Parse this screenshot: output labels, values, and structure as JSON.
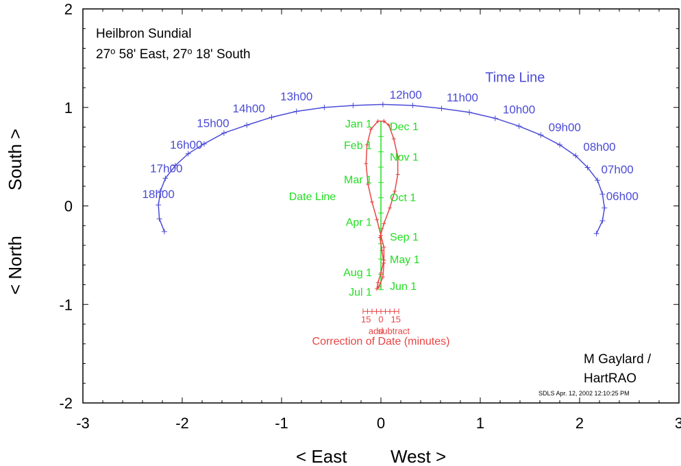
{
  "header": {
    "title": "Heilbron Sundial",
    "location_a": "27",
    "location_b": "o",
    "location_c": " 58' East, 27",
    "location_d": "o",
    "location_e": " 18' South"
  },
  "credits": {
    "author": "M Gaylard /",
    "org": "HartRAO",
    "stamp": "SDLS  Apr. 12, 2002  12:10:25 PM"
  },
  "colors": {
    "time_line": "#4a4ad6",
    "date_line": "#22dd22",
    "analemma": "#e84444",
    "axes": "#000000"
  },
  "chart_data": {
    "type": "line",
    "xlabel_left": "< East",
    "xlabel_right": "West >",
    "ylabel_left": "< North",
    "ylabel_right": "South >",
    "xlim": [
      -3,
      3
    ],
    "ylim": [
      -2,
      2
    ],
    "xticks": [
      "-3",
      "-2",
      "-1",
      "0",
      "1",
      "2",
      "3"
    ],
    "yticks": [
      "2",
      "1",
      "0",
      "-1",
      "-2"
    ],
    "grid": false,
    "series": [
      {
        "name": "Time Line",
        "points": [
          [
            -2.18,
            -0.26
          ],
          [
            -2.23,
            -0.13
          ],
          [
            -2.24,
            0.01
          ],
          [
            -2.22,
            0.15
          ],
          [
            -2.17,
            0.28
          ],
          [
            -2.07,
            0.41
          ],
          [
            -1.94,
            0.53
          ],
          [
            -1.78,
            0.63
          ],
          [
            -1.58,
            0.74
          ],
          [
            -1.35,
            0.82
          ],
          [
            -1.1,
            0.9
          ],
          [
            -0.85,
            0.96
          ],
          [
            -0.57,
            1.0
          ],
          [
            -0.28,
            1.02
          ],
          [
            0.02,
            1.03
          ],
          [
            0.32,
            1.02
          ],
          [
            0.61,
            0.99
          ],
          [
            0.89,
            0.95
          ],
          [
            1.15,
            0.89
          ],
          [
            1.39,
            0.81
          ],
          [
            1.61,
            0.72
          ],
          [
            1.8,
            0.62
          ],
          [
            1.96,
            0.51
          ],
          [
            2.08,
            0.39
          ],
          [
            2.18,
            0.26
          ],
          [
            2.23,
            0.12
          ],
          [
            2.25,
            -0.02
          ],
          [
            2.23,
            -0.15
          ],
          [
            2.17,
            -0.28
          ]
        ],
        "hour_labels": [
          {
            "text": "18h00",
            "x": -2.24,
            "y": 0.08
          },
          {
            "text": "17h00",
            "x": -2.16,
            "y": 0.34
          },
          {
            "text": "16h00",
            "x": -1.96,
            "y": 0.58
          },
          {
            "text": "15h00",
            "x": -1.69,
            "y": 0.8
          },
          {
            "text": "14h00",
            "x": -1.33,
            "y": 0.95
          },
          {
            "text": "13h00",
            "x": -0.85,
            "y": 1.07
          },
          {
            "text": "12h00",
            "x": 0.25,
            "y": 1.09
          },
          {
            "text": "11h00",
            "x": 0.82,
            "y": 1.06
          },
          {
            "text": "10h00",
            "x": 1.39,
            "y": 0.94
          },
          {
            "text": "09h00",
            "x": 1.85,
            "y": 0.76
          },
          {
            "text": "08h00",
            "x": 2.2,
            "y": 0.56
          },
          {
            "text": "07h00",
            "x": 2.38,
            "y": 0.33
          },
          {
            "text": "06h00",
            "x": 2.43,
            "y": 0.06
          }
        ],
        "title": "Time Line"
      },
      {
        "name": "Date Line",
        "x": 0.0,
        "y_range": [
          -0.85,
          0.86
        ],
        "title": "Date Line"
      },
      {
        "name": "Correction of Date (minutes)",
        "analemma": [
          [
            0.03,
            0.86
          ],
          [
            -0.03,
            0.86
          ],
          [
            -0.1,
            0.78
          ],
          [
            -0.14,
            0.62
          ],
          [
            -0.15,
            0.43
          ],
          [
            -0.13,
            0.22
          ],
          [
            -0.09,
            0.04
          ],
          [
            -0.04,
            -0.14
          ],
          [
            0.0,
            -0.3
          ],
          [
            0.03,
            -0.42
          ],
          [
            0.03,
            -0.55
          ],
          [
            0.0,
            -0.68
          ],
          [
            -0.03,
            -0.78
          ],
          [
            -0.04,
            -0.84
          ],
          [
            -0.02,
            -0.82
          ],
          [
            0.02,
            -0.72
          ],
          [
            0.03,
            -0.58
          ],
          [
            0.01,
            -0.45
          ],
          [
            -0.01,
            -0.32
          ],
          [
            0.03,
            -0.18
          ],
          [
            0.09,
            -0.02
          ],
          [
            0.14,
            0.15
          ],
          [
            0.17,
            0.32
          ],
          [
            0.17,
            0.5
          ],
          [
            0.13,
            0.68
          ],
          [
            0.08,
            0.82
          ],
          [
            0.03,
            0.86
          ]
        ],
        "date_labels": [
          {
            "text": "Jan 1",
            "side": "left",
            "y": 0.84
          },
          {
            "text": "Feb 1",
            "side": "left",
            "y": 0.62
          },
          {
            "text": "Mar 1",
            "side": "left",
            "y": 0.27
          },
          {
            "text": "Apr 1",
            "side": "left",
            "y": -0.16
          },
          {
            "text": "Aug 1",
            "side": "left",
            "y": -0.67
          },
          {
            "text": "Jul 1",
            "side": "left",
            "y": -0.87
          },
          {
            "text": "Dec 1",
            "side": "right",
            "y": 0.81
          },
          {
            "text": "Nov 1",
            "side": "right",
            "y": 0.5
          },
          {
            "text": "Oct 1",
            "side": "right",
            "y": 0.09
          },
          {
            "text": "Sep 1",
            "side": "right",
            "y": -0.31
          },
          {
            "text": "May 1",
            "side": "right",
            "y": -0.54
          },
          {
            "text": "Jun 1",
            "side": "right",
            "y": -0.81
          }
        ],
        "scale_ticks": [
          "15",
          "0",
          "15"
        ],
        "scale_add": "add",
        "scale_subtract": "subtract",
        "title": "Correction of Date (minutes)"
      }
    ]
  }
}
